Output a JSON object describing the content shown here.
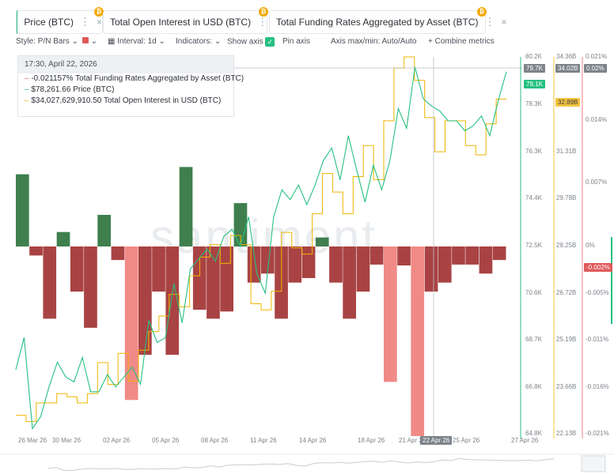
{
  "tabs": [
    {
      "label": "Price (BTC)",
      "color": "#26c081"
    },
    {
      "label": "Total Open Interest in USD (BTC)",
      "color": "#f5c542"
    },
    {
      "label": "Total Funding Rates Aggregated by Asset (BTC)",
      "color": "#f08080"
    }
  ],
  "toolbar": {
    "style_label": "Style: P/N Bars",
    "interval_label": "Interval: 1d",
    "indicators_label": "Indicators:",
    "show_axis_label": "Show axis",
    "pin_axis_label": "Pin axis",
    "axis_minmax_label": "Axis max/min: Auto/Auto",
    "combine_label": "Combine metrics"
  },
  "tooltip": {
    "datetime": "17:30, April 22, 2026",
    "rows": [
      {
        "value": "-0.021157%",
        "label": "Total Funding Rates Aggregated by Asset (BTC)",
        "color": "#f08080"
      },
      {
        "value": "$78,261.66",
        "label": "Price (BTC)",
        "color": "#26c081"
      },
      {
        "value": "$34,027,629,910.50",
        "label": "Total Open Interest in USD (BTC)",
        "color": "#f5c542"
      }
    ]
  },
  "watermark": "santiment.",
  "axes": {
    "price_ticks": [
      "80.2K",
      "79.7K",
      "79.1K",
      "78.3K",
      "76.3K",
      "74.4K",
      "72.5K",
      "70.6K",
      "68.7K",
      "66.8K",
      "64.8K"
    ],
    "oi_ticks": [
      "34.36B",
      "34.02B",
      "32.89B",
      "31.31B",
      "29.78B",
      "28.25B",
      "26.72B",
      "25.19B",
      "23.66B",
      "22.13B"
    ],
    "funding_ticks": [
      "0.021%",
      "0.02%",
      "0.014%",
      "0.007%",
      "0%",
      "-0.002%",
      "-0.005%",
      "-0.011%",
      "-0.016%",
      "-0.021%"
    ],
    "date_ticks": [
      "26 Mar 26",
      "30 Mar 26",
      "02 Apr 26",
      "05 Apr 26",
      "08 Apr 26",
      "11 Apr 26",
      "14 Apr 26",
      "18 Apr 26",
      "21 Apr 26",
      "22 Apr 26",
      "25 Apr 26",
      "27 Apr 26"
    ]
  },
  "chart_data": {
    "type": "bar",
    "funding_series": {
      "name": "Total Funding Rates Aggregated by Asset (BTC)",
      "unit": "%",
      "values": [
        0.008,
        -0.001,
        -0.008,
        0.0016,
        -0.005,
        -0.009,
        0.0035,
        -0.0015,
        -0.017,
        -0.012,
        -0.005,
        -0.012,
        0.0088,
        -0.007,
        -0.008,
        -0.0072,
        0.0048,
        -0.004,
        -0.003,
        -0.008,
        -0.004,
        -0.0035,
        0.001,
        -0.004,
        -0.008,
        -0.005,
        -0.002,
        -0.015,
        -0.0021,
        -0.021,
        -0.005,
        -0.004,
        -0.002,
        -0.002,
        -0.003,
        -0.0015
      ]
    },
    "price_series": {
      "name": "Price (BTC)",
      "ylim": [
        64800,
        80200
      ],
      "values": [
        67500,
        68800,
        65100,
        65600,
        66800,
        67800,
        67200,
        67000,
        68000,
        66600,
        66600,
        67300,
        66800,
        67200,
        67600,
        66900,
        69500,
        68600,
        68800,
        71000,
        69400,
        71600,
        72000,
        72400,
        71900,
        72900,
        73200,
        72500,
        73700,
        71400,
        70600,
        73700,
        74800,
        74400,
        75000,
        74200,
        75000,
        76000,
        76500,
        75200,
        77000,
        75600,
        74300,
        75800,
        74800,
        76000,
        78100,
        77300,
        79800,
        78500,
        78200,
        78000,
        77600,
        77600,
        77200,
        77400,
        77800,
        77000,
        78400,
        79600
      ]
    },
    "oi_series": {
      "name": "Total Open Interest in USD (BTC)",
      "ylim": [
        22130000000,
        34360000000
      ],
      "values": [
        22800000000,
        22600000000,
        23200000000,
        23200000000,
        23500000000,
        23400000000,
        23200000000,
        23500000000,
        24500000000,
        23800000000,
        24800000000,
        23900000000,
        24900000000,
        25500000000,
        26000000000,
        26700000000,
        26300000000,
        27300000000,
        27900000000,
        28300000000,
        27700000000,
        28600000000,
        28300000000,
        26400000000,
        26200000000,
        26800000000,
        28700000000,
        28200000000,
        28000000000,
        29300000000,
        30600000000,
        30000000000,
        29300000000,
        30500000000,
        31500000000,
        30400000000,
        32300000000,
        34000000000,
        34360000000,
        33600000000,
        32400000000,
        31300000000,
        32300000000,
        32300000000,
        31500000000,
        31200000000,
        32200000000,
        33000000000
      ]
    }
  }
}
